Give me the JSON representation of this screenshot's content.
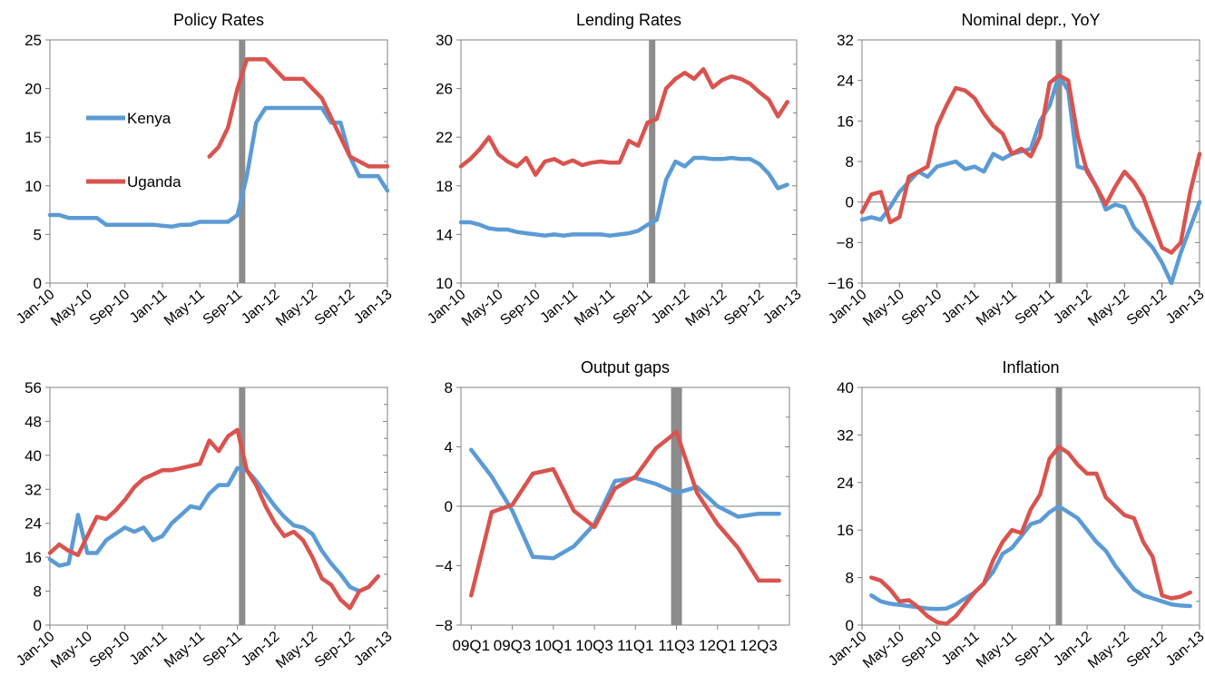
{
  "colors": {
    "kenya": "#5B9BD5",
    "uganda": "#D9534F",
    "event_bar": "#8C8C8C",
    "axis": "#808080"
  },
  "chart_data": [
    {
      "id": "policy",
      "type": "line",
      "title": "Policy Rates",
      "xlabel": "",
      "ylabel": "",
      "ylim": [
        0,
        25
      ],
      "yticks": [
        0,
        5,
        10,
        15,
        20,
        25
      ],
      "x_range": [
        0,
        36
      ],
      "x_tick_labels": [
        "Jan-10",
        "May-10",
        "Sep-10",
        "Jan-11",
        "May-11",
        "Sep-11",
        "Jan-12",
        "May-12",
        "Sep-12",
        "Jan-13"
      ],
      "x_tick_positions": [
        0,
        4,
        8,
        12,
        16,
        20,
        24,
        28,
        32,
        36
      ],
      "event_x": 20.5,
      "grid": false,
      "legend": {
        "placement": "inside-left",
        "entries": [
          {
            "name": "Kenya",
            "color": "#5B9BD5"
          },
          {
            "name": "Uganda",
            "color": "#D9534F"
          }
        ]
      },
      "series": [
        {
          "name": "Kenya",
          "color": "#5B9BD5",
          "x": [
            0,
            1,
            2,
            3,
            4,
            5,
            6,
            7,
            8,
            9,
            10,
            11,
            12,
            13,
            14,
            15,
            16,
            17,
            18,
            19,
            20,
            21,
            22,
            23,
            24,
            25,
            26,
            27,
            28,
            29,
            30,
            31,
            32,
            33,
            34,
            35,
            36
          ],
          "values": [
            7,
            7,
            6.7,
            6.7,
            6.7,
            6.7,
            6,
            6,
            6,
            6,
            6,
            6,
            5.9,
            5.8,
            6,
            6,
            6.3,
            6.3,
            6.3,
            6.3,
            7,
            11,
            16.5,
            18,
            18,
            18,
            18,
            18,
            18,
            18,
            16.5,
            16.5,
            13,
            11,
            11,
            11,
            9.5
          ]
        },
        {
          "name": "Uganda",
          "color": "#D9534F",
          "x": [
            17,
            18,
            19,
            20,
            21,
            22,
            23,
            24,
            25,
            26,
            27,
            28,
            29,
            30,
            31,
            32,
            33,
            34,
            35,
            36
          ],
          "values": [
            13,
            14,
            16,
            20,
            23,
            23,
            23,
            22,
            21,
            21,
            21,
            20,
            19,
            17,
            15,
            13,
            12.5,
            12,
            12,
            12
          ]
        }
      ]
    },
    {
      "id": "lending",
      "type": "line",
      "title": "Lending Rates",
      "xlabel": "",
      "ylabel": "",
      "ylim": [
        10,
        30
      ],
      "yticks": [
        10,
        14,
        18,
        22,
        26,
        30
      ],
      "x_range": [
        0,
        36
      ],
      "x_tick_labels": [
        "Jan-10",
        "May-10",
        "Sep-10",
        "Jan-11",
        "May-11",
        "Sep-11",
        "Jan-12",
        "May-12",
        "Sep-12",
        "Jan-13"
      ],
      "x_tick_positions": [
        0,
        4,
        8,
        12,
        16,
        20,
        24,
        28,
        32,
        36
      ],
      "event_x": 20.5,
      "grid": false,
      "series": [
        {
          "name": "Kenya",
          "color": "#5B9BD5",
          "x": [
            0,
            1,
            2,
            3,
            4,
            5,
            6,
            7,
            8,
            9,
            10,
            11,
            12,
            13,
            14,
            15,
            16,
            17,
            18,
            19,
            20,
            21,
            22,
            23,
            24,
            25,
            26,
            27,
            28,
            29,
            30,
            31,
            32,
            33,
            34,
            35
          ],
          "values": [
            15,
            15,
            14.8,
            14.5,
            14.4,
            14.4,
            14.2,
            14.1,
            14,
            13.9,
            14,
            13.9,
            14,
            14,
            14,
            14,
            13.9,
            14,
            14.1,
            14.3,
            14.8,
            15.2,
            18.5,
            20,
            19.6,
            20.3,
            20.3,
            20.2,
            20.2,
            20.3,
            20.2,
            20.2,
            19.8,
            19,
            17.8,
            18.1
          ]
        },
        {
          "name": "Uganda",
          "color": "#D9534F",
          "x": [
            0,
            1,
            2,
            3,
            4,
            5,
            6,
            7,
            8,
            9,
            10,
            11,
            12,
            13,
            14,
            15,
            16,
            17,
            18,
            19,
            20,
            21,
            22,
            23,
            24,
            25,
            26,
            27,
            28,
            29,
            30,
            31,
            32,
            33,
            34,
            35
          ],
          "values": [
            19.6,
            20.2,
            21,
            22,
            20.6,
            20,
            19.6,
            20.3,
            18.9,
            20,
            20.2,
            19.8,
            20.1,
            19.7,
            19.9,
            20,
            19.9,
            19.9,
            21.7,
            21.3,
            23.2,
            23.5,
            26,
            26.8,
            27.3,
            26.8,
            27.6,
            26.1,
            26.7,
            27,
            26.8,
            26.4,
            25.7,
            25.1,
            23.7,
            24.9
          ]
        }
      ]
    },
    {
      "id": "nominal",
      "type": "line",
      "title": "Nominal depr., YoY",
      "xlabel": "",
      "ylabel": "",
      "ylim": [
        -16,
        32
      ],
      "yticks": [
        -16,
        -8,
        0,
        8,
        16,
        24,
        32
      ],
      "x_range": [
        0,
        36
      ],
      "x_tick_labels": [
        "Jan-10",
        "May-10",
        "Sep-10",
        "Jan-11",
        "May-11",
        "Sep-11",
        "Jan-12",
        "May-12",
        "Sep-12",
        "Jan-13"
      ],
      "x_tick_positions": [
        0,
        4,
        8,
        12,
        16,
        20,
        24,
        28,
        32,
        36
      ],
      "event_x": 21,
      "grid": false,
      "series": [
        {
          "name": "Kenya",
          "color": "#5B9BD5",
          "x": [
            0,
            1,
            2,
            3,
            4,
            5,
            6,
            7,
            8,
            9,
            10,
            11,
            12,
            13,
            14,
            15,
            16,
            17,
            18,
            19,
            20,
            21,
            22,
            23,
            24,
            25,
            26,
            27,
            28,
            29,
            30,
            31,
            32,
            33,
            34,
            35,
            36
          ],
          "values": [
            -3.5,
            -3,
            -3.5,
            -1,
            2,
            4,
            6,
            5,
            7,
            7.5,
            8,
            6.5,
            7,
            6,
            9.5,
            8.5,
            9.5,
            10,
            10.5,
            16,
            19,
            25,
            22,
            7,
            6.5,
            3,
            -1.5,
            -0.5,
            -1,
            -5,
            -7,
            -9,
            -12,
            -16,
            -10,
            -5,
            0
          ]
        },
        {
          "name": "Uganda",
          "color": "#D9534F",
          "x": [
            0,
            1,
            2,
            3,
            4,
            5,
            6,
            7,
            8,
            9,
            10,
            11,
            12,
            13,
            14,
            15,
            16,
            17,
            18,
            19,
            20,
            21,
            22,
            23,
            24,
            25,
            26,
            27,
            28,
            29,
            30,
            31,
            32,
            33,
            34,
            35,
            36
          ],
          "values": [
            -2,
            1.5,
            2,
            -4,
            -3,
            5,
            6,
            7,
            15,
            19,
            22.5,
            22,
            20.5,
            17.5,
            15,
            13.5,
            9.5,
            10.5,
            9,
            13,
            23.5,
            25,
            24,
            13,
            6,
            3,
            -0.5,
            3,
            6,
            4,
            1,
            -4,
            -9,
            -10,
            -8,
            2,
            9.5
          ]
        }
      ]
    },
    {
      "id": "fourth",
      "type": "line",
      "title": "",
      "xlabel": "",
      "ylabel": "",
      "ylim": [
        0,
        56
      ],
      "yticks": [
        0,
        8,
        16,
        24,
        32,
        40,
        48,
        56
      ],
      "x_range": [
        0,
        36
      ],
      "x_tick_labels": [
        "Jan-10",
        "May-10",
        "Sep-10",
        "Jan-11",
        "May-11",
        "Sep-11",
        "Jan-12",
        "May-12",
        "Sep-12",
        "Jan-13"
      ],
      "x_tick_positions": [
        0,
        4,
        8,
        12,
        16,
        20,
        24,
        28,
        32,
        36
      ],
      "event_x": 20.5,
      "grid": false,
      "series": [
        {
          "name": "Kenya",
          "color": "#5B9BD5",
          "x": [
            0,
            1,
            2,
            3,
            4,
            5,
            6,
            7,
            8,
            9,
            10,
            11,
            12,
            13,
            14,
            15,
            16,
            17,
            18,
            19,
            20,
            21,
            22,
            23,
            24,
            25,
            26,
            27,
            28,
            29,
            30,
            31,
            32,
            33,
            34,
            35
          ],
          "values": [
            15.5,
            14,
            14.5,
            26,
            17,
            17,
            20,
            21.5,
            23,
            22,
            23,
            20,
            21,
            24,
            26,
            28,
            27.5,
            31,
            33,
            33,
            37,
            36.5,
            34,
            31,
            28,
            25.5,
            23.5,
            23,
            21.5,
            17.5,
            14.5,
            12,
            9,
            8,
            9,
            11.5
          ]
        },
        {
          "name": "Uganda",
          "color": "#D9534F",
          "x": [
            0,
            1,
            2,
            3,
            4,
            5,
            6,
            7,
            8,
            9,
            10,
            11,
            12,
            13,
            14,
            15,
            16,
            17,
            18,
            19,
            20,
            21,
            22,
            23,
            24,
            25,
            26,
            27,
            28,
            29,
            30,
            31,
            32,
            33,
            34,
            35
          ],
          "values": [
            17,
            19,
            17.5,
            16.5,
            21,
            25.5,
            25,
            27,
            29.5,
            32.5,
            34.5,
            35.5,
            36.5,
            36.5,
            37,
            37.5,
            38,
            43.5,
            41,
            44.5,
            46,
            36.5,
            33,
            28,
            24,
            21,
            22,
            20,
            16,
            11,
            9.5,
            6,
            4,
            8,
            9,
            11.5
          ]
        }
      ]
    },
    {
      "id": "output",
      "type": "line",
      "title": "Output gaps",
      "xlabel": "",
      "ylabel": "",
      "ylim": [
        -8,
        8
      ],
      "yticks": [
        -8,
        -4,
        0,
        4,
        8
      ],
      "x_range": [
        -0.5,
        15.5
      ],
      "x_tick_labels": [
        "09Q1",
        "09Q3",
        "10Q1",
        "10Q3",
        "11Q1",
        "11Q3",
        "12Q1",
        "12Q3"
      ],
      "x_tick_positions": [
        0,
        2,
        4,
        6,
        8,
        10,
        12,
        14
      ],
      "event_x": 10,
      "grid": false,
      "series": [
        {
          "name": "Kenya",
          "color": "#5B9BD5",
          "x": [
            0,
            1,
            2,
            3,
            4,
            5,
            6,
            7,
            8,
            9,
            10,
            11,
            12,
            13,
            14,
            15
          ],
          "values": [
            3.8,
            2,
            -0.3,
            -3.4,
            -3.5,
            -2.7,
            -1.2,
            1.7,
            1.9,
            1.5,
            0.9,
            1.3,
            0,
            -0.7,
            -0.5,
            -0.5
          ]
        },
        {
          "name": "Uganda",
          "color": "#D9534F",
          "x": [
            0,
            1,
            2,
            3,
            4,
            5,
            6,
            7,
            8,
            9,
            10,
            11,
            12,
            13,
            14,
            15
          ],
          "values": [
            -6,
            -0.4,
            0.1,
            2.2,
            2.5,
            -0.3,
            -1.4,
            1.2,
            2,
            3.9,
            5,
            0.9,
            -1.2,
            -2.8,
            -5,
            -5
          ]
        }
      ]
    },
    {
      "id": "inflation",
      "type": "line",
      "title": "Inflation",
      "xlabel": "",
      "ylabel": "",
      "ylim": [
        0,
        40
      ],
      "yticks": [
        0,
        8,
        16,
        24,
        32,
        40
      ],
      "x_range": [
        0,
        36
      ],
      "x_tick_labels": [
        "Jan-10",
        "May-10",
        "Sep-10",
        "Jan-11",
        "May-11",
        "Sep-11",
        "Jan-12",
        "May-12",
        "Sep-12",
        "Jan-13"
      ],
      "x_tick_positions": [
        0,
        4,
        8,
        12,
        16,
        20,
        24,
        28,
        32,
        36
      ],
      "event_x": 21,
      "grid": false,
      "series": [
        {
          "name": "Kenya",
          "color": "#5B9BD5",
          "x": [
            1,
            2,
            3,
            4,
            5,
            6,
            7,
            8,
            9,
            10,
            11,
            12,
            13,
            14,
            15,
            16,
            17,
            18,
            19,
            20,
            21,
            22,
            23,
            24,
            25,
            26,
            27,
            28,
            29,
            30,
            31,
            32,
            33,
            34,
            35
          ],
          "values": [
            5,
            4,
            3.6,
            3.4,
            3.2,
            3,
            2.8,
            2.7,
            2.8,
            3.5,
            4.5,
            5.5,
            7,
            9,
            12,
            13,
            15,
            17,
            17.5,
            19,
            20,
            19,
            18,
            16,
            14,
            12.5,
            10,
            8,
            6,
            5,
            4.5,
            4,
            3.5,
            3.3,
            3.2
          ]
        },
        {
          "name": "Uganda",
          "color": "#D9534F",
          "x": [
            1,
            2,
            3,
            4,
            5,
            6,
            7,
            8,
            9,
            10,
            11,
            12,
            13,
            14,
            15,
            16,
            17,
            18,
            19,
            20,
            21,
            22,
            23,
            24,
            25,
            26,
            27,
            28,
            29,
            30,
            31,
            32,
            33,
            34,
            35
          ],
          "values": [
            8,
            7.5,
            6,
            4,
            4.2,
            3,
            1.5,
            0.5,
            0.2,
            1.5,
            3.5,
            5.5,
            7,
            11,
            14,
            16,
            15.5,
            19.5,
            22,
            28,
            30,
            29,
            27,
            25.5,
            25.5,
            21.5,
            20,
            18.5,
            18,
            14,
            11.5,
            5,
            4.5,
            4.8,
            5.5
          ]
        }
      ]
    }
  ]
}
